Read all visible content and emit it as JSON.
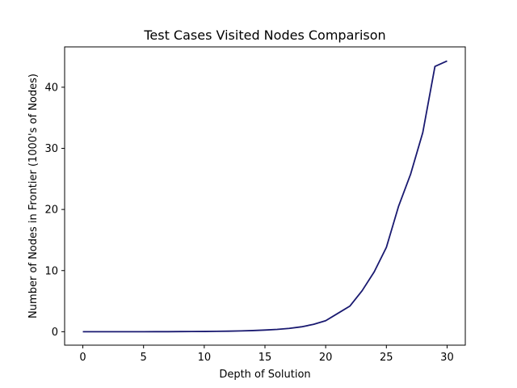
{
  "chart_data": {
    "type": "line",
    "title": "Test Cases Visited Nodes Comparison",
    "xlabel": "Depth of Solution",
    "ylabel": "Number of Nodes in Frontier (1000's of Nodes)",
    "xlim": [
      -1.5,
      31.5
    ],
    "ylim": [
      -2.2,
      46.6
    ],
    "xticks": [
      0,
      5,
      10,
      15,
      20,
      25,
      30
    ],
    "yticks": [
      0,
      10,
      20,
      30,
      40
    ],
    "grid": false,
    "series": [
      {
        "color": "#191970",
        "x": [
          0,
          1,
          2,
          3,
          4,
          5,
          6,
          7,
          8,
          9,
          10,
          11,
          12,
          13,
          14,
          15,
          16,
          17,
          18,
          19,
          20,
          21,
          22,
          23,
          24,
          25,
          26,
          27,
          28,
          29,
          30
        ],
        "values": [
          0,
          0,
          0,
          0,
          0,
          0,
          0.01,
          0.01,
          0.02,
          0.03,
          0.04,
          0.06,
          0.09,
          0.13,
          0.19,
          0.27,
          0.38,
          0.55,
          0.8,
          1.2,
          1.8,
          3.0,
          4.2,
          6.7,
          9.8,
          13.8,
          20.5,
          25.8,
          32.6,
          43.4,
          44.3
        ]
      }
    ]
  }
}
